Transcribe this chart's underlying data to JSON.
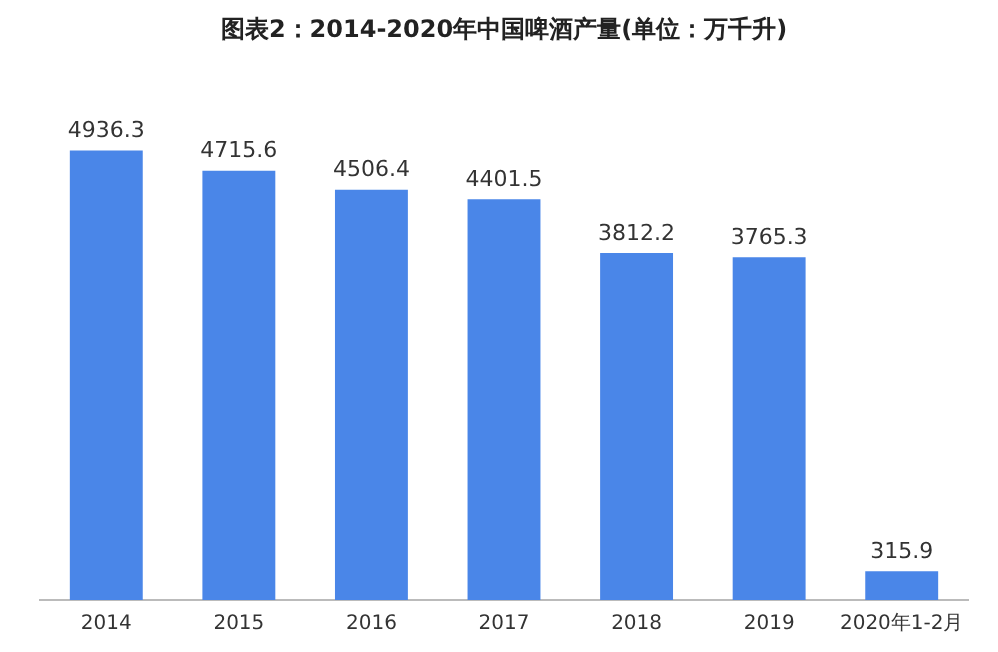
{
  "chart_data": {
    "type": "bar",
    "title": "图表2：2014-2020年中国啤酒产量(单位：万千升)",
    "categories": [
      "2014",
      "2015",
      "2016",
      "2017",
      "2018",
      "2019",
      "2020年1-2月"
    ],
    "values": [
      4936.3,
      4715.6,
      4506.4,
      4401.5,
      3812.2,
      3765.3,
      315.9
    ],
    "color": "#4a86e8",
    "data_labels": true,
    "grid": false,
    "legend": false
  }
}
